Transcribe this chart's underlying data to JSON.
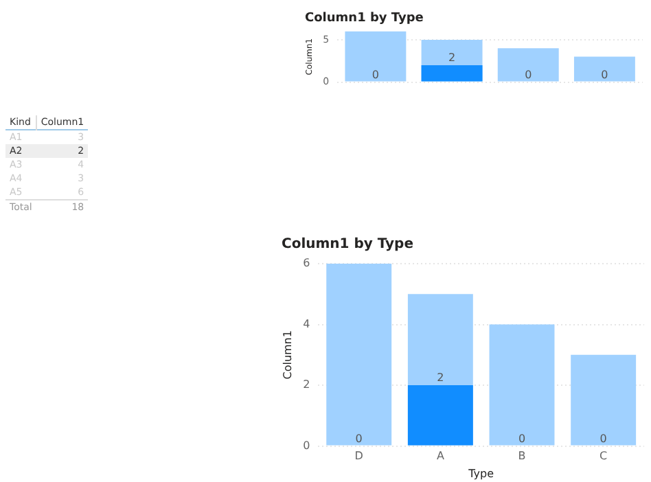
{
  "chart_data": [
    {
      "type": "bar",
      "title": "Column1 by Type",
      "ylabel": "Column1",
      "categories": [
        null,
        null,
        null,
        null
      ],
      "ylim": [
        0,
        6
      ],
      "yticks": [
        0,
        5
      ],
      "grid": "y",
      "tick_labels": "y",
      "series": [
        {
          "color": "#118dff",
          "values": [
            0,
            2,
            0,
            0
          ],
          "value_labels": [
            "0",
            "2",
            "0",
            "0"
          ]
        },
        {
          "color": "#a0d1ff",
          "values": [
            6,
            5,
            4,
            3
          ]
        }
      ]
    },
    {
      "type": "other",
      "xlabel": "Kind",
      "ylabel": "Column1",
      "categories": [
        "A1",
        "A2",
        "A3",
        "A4",
        "A5"
      ],
      "values": [
        3,
        2,
        4,
        3,
        6
      ],
      "data_labels": true,
      "colors": [
        "#ffffff",
        "#eeeeee",
        "#ffffff",
        "#ffffff",
        "#ffffff"
      ],
      "annotations": [
        "Total",
        "18"
      ]
    },
    {
      "type": "bar",
      "title": "Column1 by Type",
      "xlabel": "Type",
      "ylabel": "Column1",
      "categories": [
        "D",
        "A",
        "B",
        "C"
      ],
      "ylim": [
        0,
        6
      ],
      "yticks": [
        0,
        2,
        4,
        6
      ],
      "grid": "y",
      "series": [
        {
          "color": "#118dff",
          "values": [
            0,
            2,
            0,
            0
          ],
          "value_labels": [
            "0",
            "2",
            "0",
            "0"
          ]
        },
        {
          "color": "#a0d1ff",
          "values": [
            6,
            5,
            4,
            3
          ]
        }
      ]
    }
  ]
}
